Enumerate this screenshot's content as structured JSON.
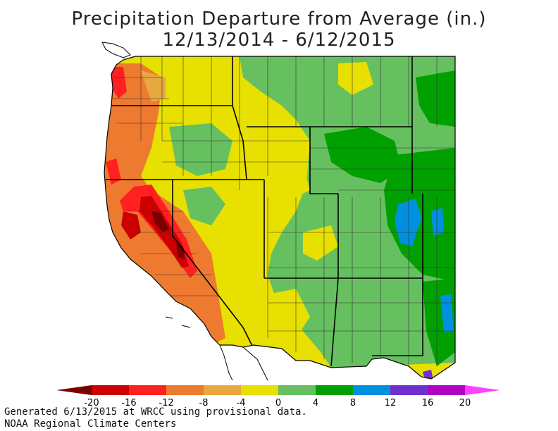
{
  "title": {
    "line1": "Precipitation Departure from Average (in.)",
    "line2": "12/13/2014 - 6/12/2015"
  },
  "legend": {
    "breaks": [
      "-20",
      "-16",
      "-12",
      "-8",
      "-4",
      "0",
      "4",
      "8",
      "12",
      "16",
      "20"
    ],
    "colors": [
      "#7a0000",
      "#cc0000",
      "#ff2020",
      "#ee7a30",
      "#e8a840",
      "#e8e000",
      "#66c060",
      "#00a000",
      "#0090e0",
      "#7030d0",
      "#b000c0",
      "#ff40ff"
    ]
  },
  "footer": {
    "line1": "Generated 6/13/2015 at WRCC using provisional data.",
    "line2": "NOAA Regional Climate Centers"
  }
}
